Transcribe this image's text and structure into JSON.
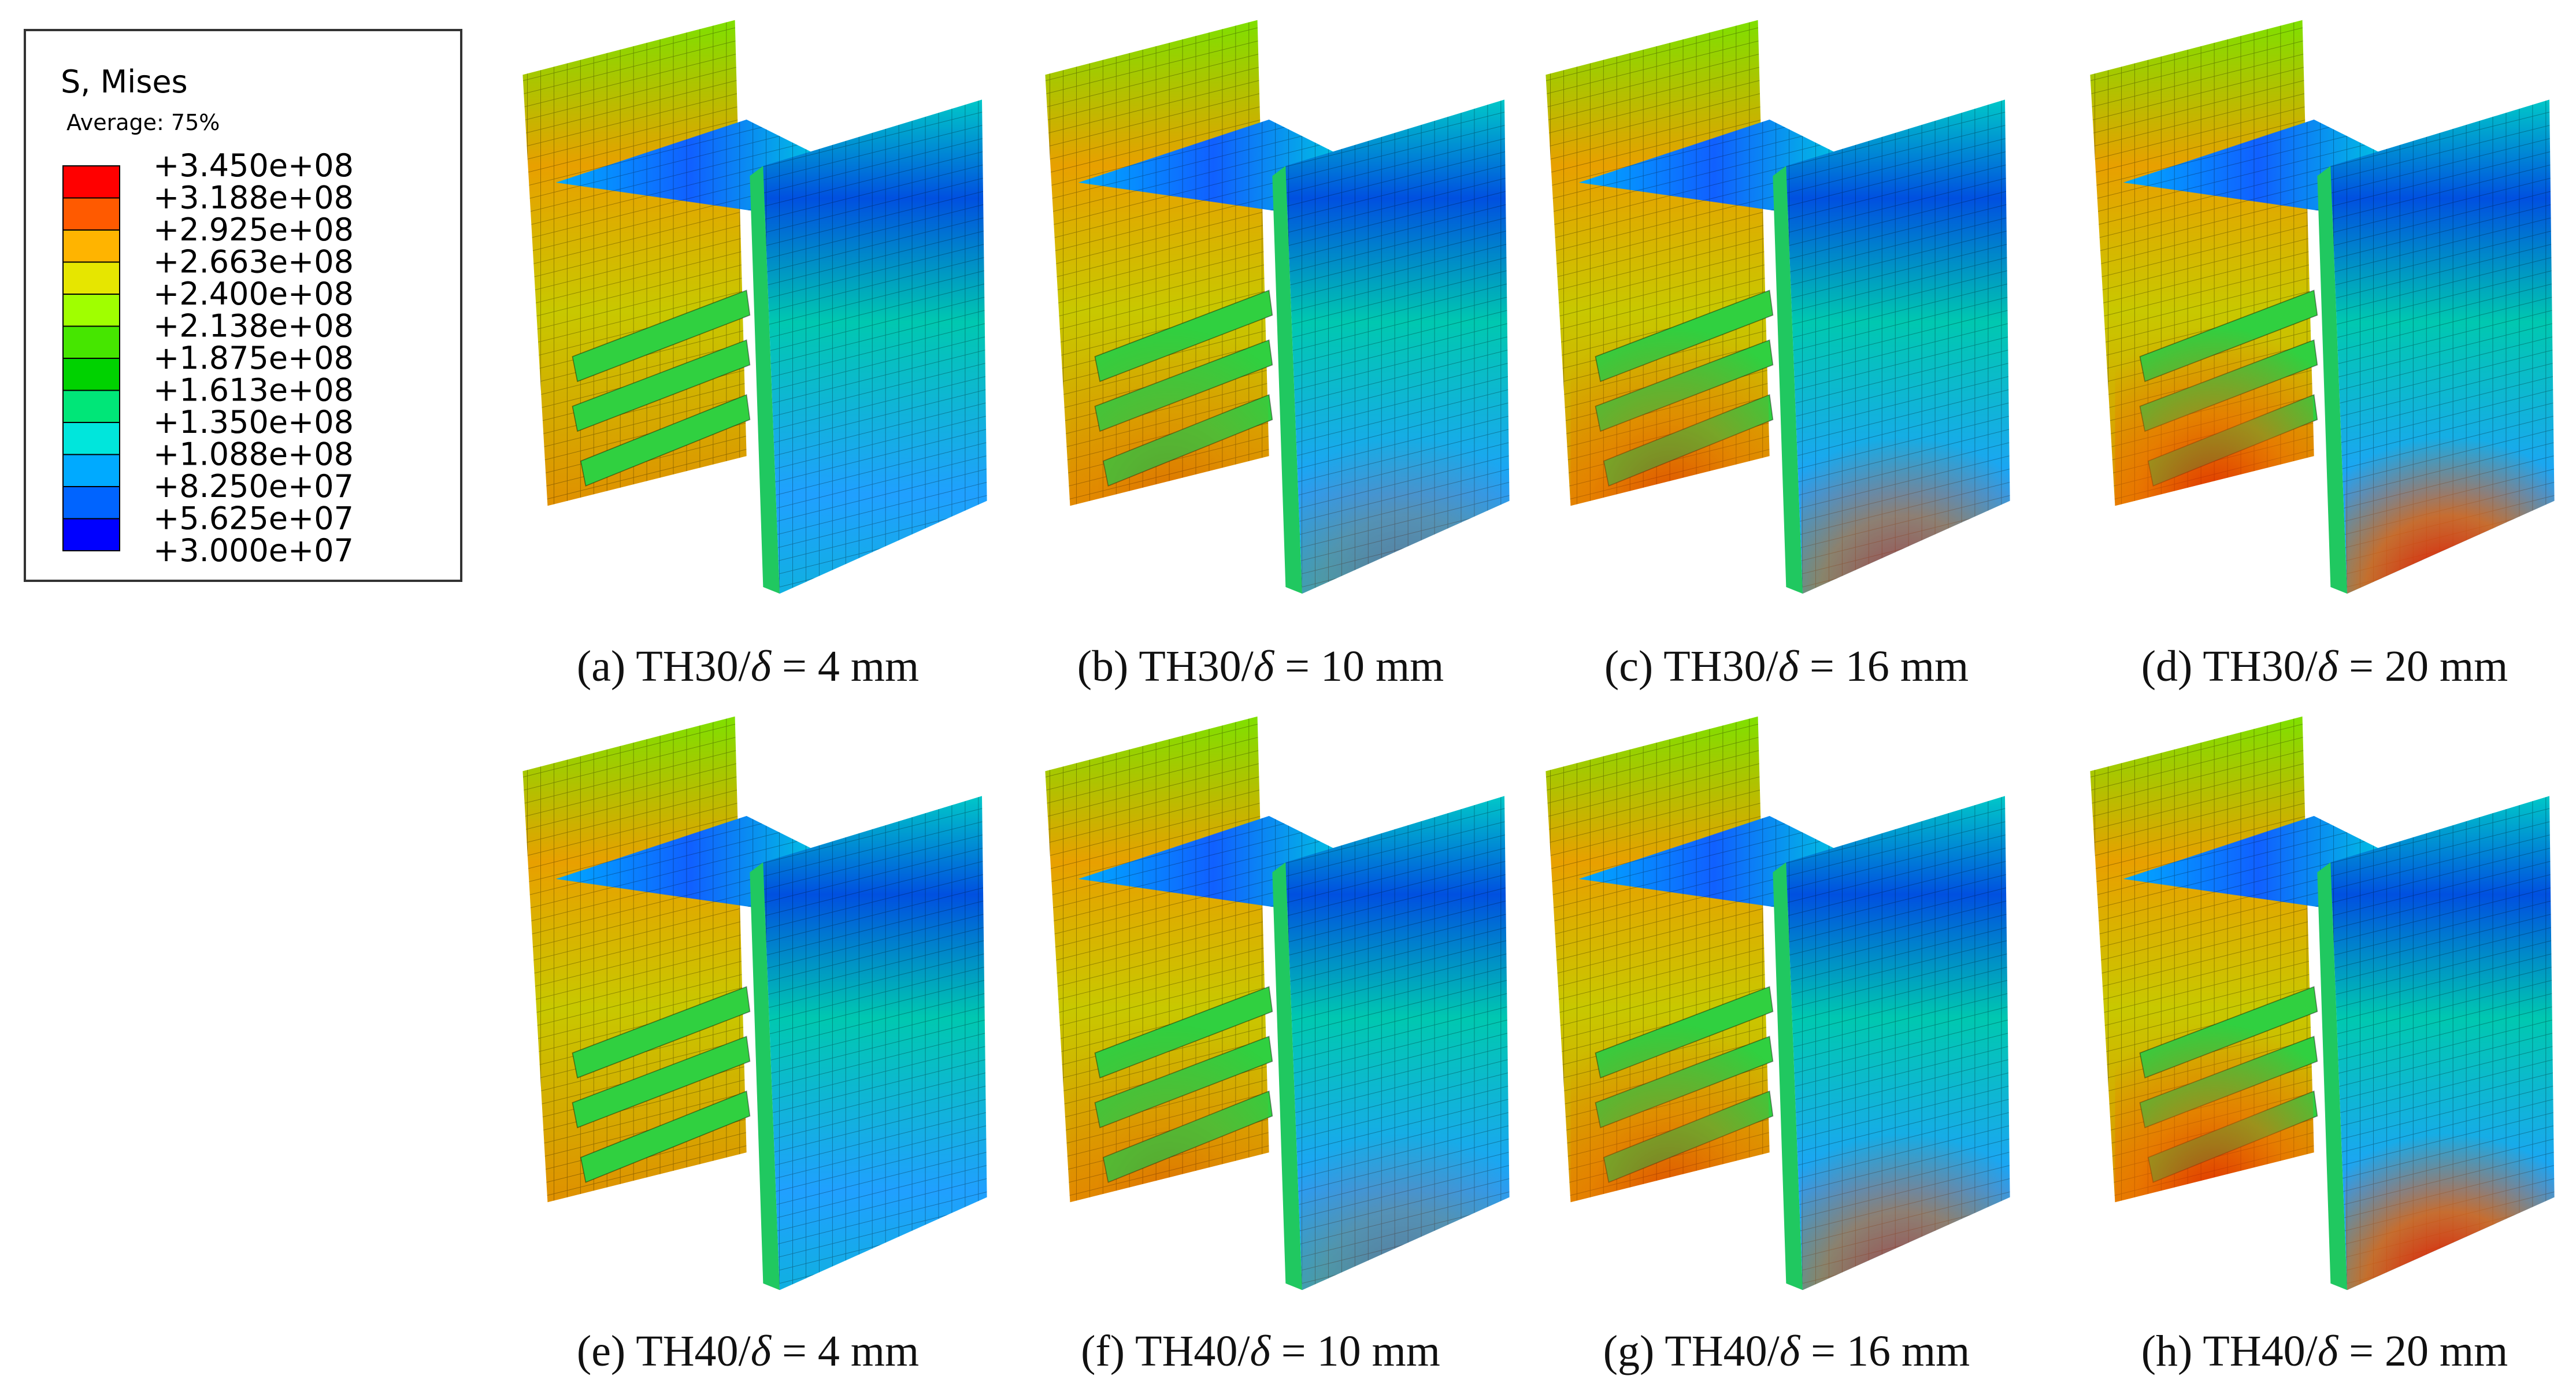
{
  "legend": {
    "title": "S, Mises",
    "subtitle": "Average: 75%",
    "colors": [
      "#ff0000",
      "#ff5a00",
      "#ffb400",
      "#e6e600",
      "#a0ff00",
      "#46e600",
      "#00d200",
      "#00e678",
      "#00e6dc",
      "#00aaff",
      "#0064ff",
      "#0000ff"
    ],
    "labels": [
      "+3.450e+08",
      "+3.188e+08",
      "+2.925e+08",
      "+2.663e+08",
      "+2.400e+08",
      "+2.138e+08",
      "+1.875e+08",
      "+1.613e+08",
      "+1.350e+08",
      "+1.088e+08",
      "+8.250e+07",
      "+5.625e+07",
      "+3.000e+07"
    ]
  },
  "panels": [
    {
      "label": "(a)",
      "text": "TH30/",
      "symbol": "δ",
      "rest": " = 4 mm"
    },
    {
      "label": "(b)",
      "text": "TH30/",
      "symbol": "δ",
      "rest": " = 10 mm"
    },
    {
      "label": "(c)",
      "text": "TH30/",
      "symbol": "δ",
      "rest": " = 16 mm"
    },
    {
      "label": "(d)",
      "text": "TH30/",
      "symbol": "δ",
      "rest": " = 20 mm"
    },
    {
      "label": "(e)",
      "text": "TH40/",
      "symbol": "δ",
      "rest": " = 4 mm"
    },
    {
      "label": "(f)",
      "text": "TH40/",
      "symbol": "δ",
      "rest": " = 10 mm"
    },
    {
      "label": "(g)",
      "text": "TH40/",
      "symbol": "δ",
      "rest": " = 16 mm"
    },
    {
      "label": "(h)",
      "text": "TH40/",
      "symbol": "δ",
      "rest": " = 20 mm"
    }
  ]
}
